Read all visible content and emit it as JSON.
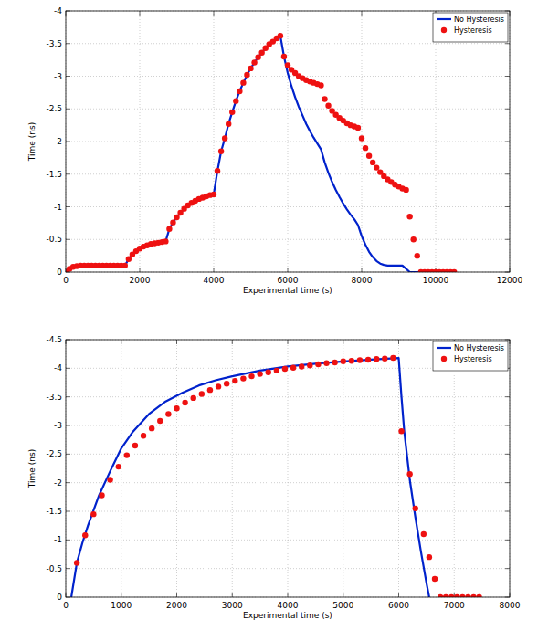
{
  "chart_data": [
    {
      "type": "line",
      "xlabel": "Experimental time (s)",
      "ylabel": "Time (ns)",
      "xlim": [
        0,
        12000
      ],
      "xticks": [
        0,
        2000,
        4000,
        6000,
        8000,
        10000,
        12000
      ],
      "ylim": [
        0,
        -4
      ],
      "yticks": [
        0,
        -0.5,
        -1,
        -1.5,
        -2,
        -2.5,
        -3,
        -3.5,
        -4
      ],
      "grid": true,
      "legend": "northeast",
      "series": [
        {
          "name": "No Hysteresis",
          "type": "line",
          "color": "#0022cc",
          "line_style": "solid",
          "x": [
            0,
            100,
            200,
            300,
            400,
            500,
            600,
            700,
            800,
            900,
            1000,
            1100,
            1200,
            1300,
            1400,
            1500,
            1600,
            1700,
            1800,
            1900,
            2000,
            2100,
            2200,
            2300,
            2400,
            2500,
            2600,
            2700,
            2800,
            2900,
            3000,
            3100,
            3200,
            3300,
            3400,
            3500,
            3600,
            3700,
            3800,
            3900,
            4000,
            4100,
            4200,
            4300,
            4400,
            4500,
            4600,
            4700,
            4800,
            4900,
            5000,
            5100,
            5200,
            5300,
            5400,
            5500,
            5600,
            5700,
            5800,
            5900,
            6000,
            6100,
            6200,
            6300,
            6400,
            6500,
            6600,
            6700,
            6800,
            6900,
            7000,
            7100,
            7200,
            7300,
            7400,
            7500,
            7600,
            7700,
            7800,
            7900,
            8000,
            8100,
            8200,
            8300,
            8400,
            8500,
            8600,
            8700,
            8800,
            8900,
            9000,
            9100,
            9200,
            9300,
            9400,
            9500,
            9600
          ],
          "values": [
            0,
            -0.05,
            -0.08,
            -0.09,
            -0.1,
            -0.1,
            -0.1,
            -0.1,
            -0.1,
            -0.1,
            -0.1,
            -0.1,
            -0.1,
            -0.1,
            -0.1,
            -0.1,
            -0.1,
            -0.2,
            -0.27,
            -0.32,
            -0.36,
            -0.39,
            -0.41,
            -0.43,
            -0.44,
            -0.45,
            -0.46,
            -0.47,
            -0.66,
            -0.76,
            -0.84,
            -0.91,
            -0.97,
            -1.02,
            -1.06,
            -1.09,
            -1.12,
            -1.14,
            -1.16,
            -1.18,
            -1.19,
            -1.55,
            -1.85,
            -2.05,
            -2.27,
            -2.45,
            -2.62,
            -2.77,
            -2.9,
            -3.02,
            -3.12,
            -3.21,
            -3.29,
            -3.36,
            -3.43,
            -3.49,
            -3.53,
            -3.58,
            -3.62,
            -3.3,
            -3.05,
            -2.85,
            -2.68,
            -2.53,
            -2.4,
            -2.27,
            -2.16,
            -2.06,
            -1.97,
            -1.88,
            -1.68,
            -1.52,
            -1.38,
            -1.26,
            -1.15,
            -1.05,
            -0.96,
            -0.88,
            -0.81,
            -0.72,
            -0.55,
            -0.42,
            -0.31,
            -0.23,
            -0.17,
            -0.13,
            -0.11,
            -0.1,
            -0.1,
            -0.1,
            -0.1,
            -0.1,
            -0.05,
            0,
            0,
            0,
            0
          ]
        },
        {
          "name": "Hysteresis",
          "type": "scatter",
          "color": "#ee1111",
          "marker": "circle",
          "x": [
            0,
            100,
            200,
            300,
            400,
            500,
            600,
            700,
            800,
            900,
            1000,
            1100,
            1200,
            1300,
            1400,
            1500,
            1600,
            1700,
            1800,
            1900,
            2000,
            2100,
            2200,
            2300,
            2400,
            2500,
            2600,
            2700,
            2800,
            2900,
            3000,
            3100,
            3200,
            3300,
            3400,
            3500,
            3600,
            3700,
            3800,
            3900,
            4000,
            4100,
            4200,
            4300,
            4400,
            4500,
            4600,
            4700,
            4800,
            4900,
            5000,
            5100,
            5200,
            5300,
            5400,
            5500,
            5600,
            5700,
            5800,
            5900,
            6000,
            6100,
            6200,
            6300,
            6400,
            6500,
            6600,
            6700,
            6800,
            6900,
            7000,
            7100,
            7200,
            7300,
            7400,
            7500,
            7600,
            7700,
            7800,
            7900,
            8000,
            8100,
            8200,
            8300,
            8400,
            8500,
            8600,
            8700,
            8800,
            8900,
            9000,
            9100,
            9200,
            9300,
            9400,
            9500,
            9600,
            9700,
            9800,
            9900,
            10000,
            10100,
            10200,
            10300,
            10400,
            10500
          ],
          "values": [
            0,
            -0.05,
            -0.08,
            -0.09,
            -0.1,
            -0.1,
            -0.1,
            -0.1,
            -0.1,
            -0.1,
            -0.1,
            -0.1,
            -0.1,
            -0.1,
            -0.1,
            -0.1,
            -0.1,
            -0.2,
            -0.27,
            -0.32,
            -0.36,
            -0.39,
            -0.41,
            -0.43,
            -0.44,
            -0.45,
            -0.46,
            -0.47,
            -0.66,
            -0.76,
            -0.84,
            -0.91,
            -0.97,
            -1.02,
            -1.06,
            -1.09,
            -1.12,
            -1.14,
            -1.16,
            -1.18,
            -1.19,
            -1.55,
            -1.85,
            -2.05,
            -2.27,
            -2.45,
            -2.62,
            -2.77,
            -2.9,
            -3.02,
            -3.12,
            -3.21,
            -3.29,
            -3.36,
            -3.43,
            -3.49,
            -3.53,
            -3.58,
            -3.62,
            -3.3,
            -3.17,
            -3.1,
            -3.05,
            -3.0,
            -2.97,
            -2.94,
            -2.92,
            -2.9,
            -2.88,
            -2.86,
            -2.65,
            -2.55,
            -2.47,
            -2.41,
            -2.36,
            -2.32,
            -2.28,
            -2.25,
            -2.23,
            -2.21,
            -2.05,
            -1.9,
            -1.78,
            -1.68,
            -1.6,
            -1.53,
            -1.47,
            -1.42,
            -1.38,
            -1.34,
            -1.31,
            -1.28,
            -1.26,
            -0.85,
            -0.5,
            -0.25,
            0,
            0,
            0,
            0,
            0,
            0,
            0,
            0,
            0,
            0
          ]
        }
      ]
    },
    {
      "type": "line",
      "xlabel": "Experimental time (s)",
      "ylabel": "Time (ns)",
      "xlim": [
        0,
        8000
      ],
      "xticks": [
        0,
        1000,
        2000,
        3000,
        4000,
        5000,
        6000,
        7000,
        8000
      ],
      "ylim": [
        0,
        -4.5
      ],
      "yticks": [
        0,
        -0.5,
        -1,
        -1.5,
        -2,
        -2.5,
        -3,
        -3.5,
        -4,
        -4.5
      ],
      "grid": true,
      "legend": "northeast",
      "series": [
        {
          "name": "No Hysteresis",
          "type": "line",
          "color": "#0022cc",
          "line_style": "solid",
          "x": [
            100,
            200,
            300,
            400,
            600,
            800,
            1000,
            1200,
            1500,
            1800,
            2100,
            2400,
            2700,
            3000,
            3500,
            4000,
            4500,
            5000,
            5500,
            6000,
            6050,
            6100,
            6200,
            6300,
            6400,
            6500,
            6550
          ],
          "values": [
            0,
            -0.6,
            -0.95,
            -1.25,
            -1.78,
            -2.2,
            -2.6,
            -2.88,
            -3.2,
            -3.42,
            -3.57,
            -3.7,
            -3.79,
            -3.86,
            -3.96,
            -4.03,
            -4.08,
            -4.12,
            -4.15,
            -4.18,
            -3.5,
            -2.9,
            -2.05,
            -1.4,
            -0.8,
            -0.25,
            0
          ]
        },
        {
          "name": "Hysteresis",
          "type": "scatter",
          "color": "#ee1111",
          "marker": "circle",
          "x": [
            200,
            350,
            500,
            650,
            800,
            950,
            1100,
            1250,
            1400,
            1550,
            1700,
            1850,
            2000,
            2150,
            2300,
            2450,
            2600,
            2750,
            2900,
            3050,
            3200,
            3350,
            3500,
            3650,
            3800,
            3950,
            4100,
            4250,
            4400,
            4550,
            4700,
            4850,
            5000,
            5150,
            5300,
            5450,
            5600,
            5750,
            5900,
            6050,
            6200,
            6300,
            6450,
            6550,
            6650,
            6750,
            6850,
            6950,
            7050,
            7150,
            7250,
            7350,
            7450
          ],
          "values": [
            -0.6,
            -1.08,
            -1.45,
            -1.78,
            -2.05,
            -2.28,
            -2.48,
            -2.65,
            -2.82,
            -2.95,
            -3.08,
            -3.2,
            -3.3,
            -3.4,
            -3.48,
            -3.55,
            -3.62,
            -3.68,
            -3.73,
            -3.78,
            -3.82,
            -3.86,
            -3.9,
            -3.93,
            -3.96,
            -3.99,
            -4.01,
            -4.03,
            -4.05,
            -4.07,
            -4.09,
            -4.1,
            -4.12,
            -4.13,
            -4.14,
            -4.15,
            -4.16,
            -4.17,
            -4.18,
            -2.9,
            -2.15,
            -1.55,
            -1.1,
            -0.7,
            -0.32,
            0,
            0,
            0,
            0,
            0,
            0,
            0,
            0
          ]
        }
      ]
    }
  ]
}
